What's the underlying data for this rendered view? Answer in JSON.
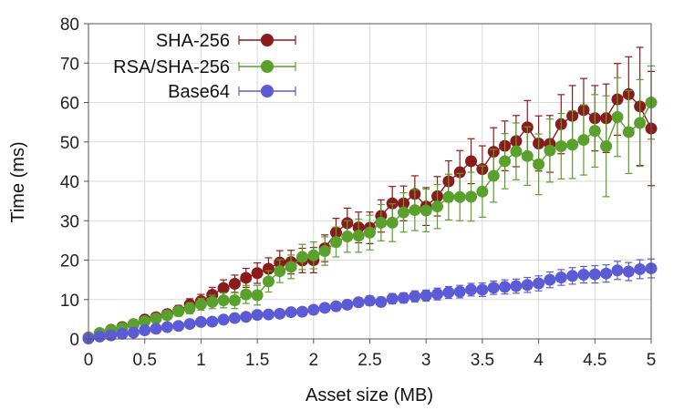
{
  "chart_data": {
    "type": "scatter",
    "xlabel": "Asset size (MB)",
    "ylabel": "Time (ms)",
    "xlim": [
      0,
      5
    ],
    "ylim": [
      0,
      80
    ],
    "xticks": [
      "0",
      "0.5",
      "1",
      "1.5",
      "2",
      "2.5",
      "3",
      "3.5",
      "4",
      "4.5",
      "5"
    ],
    "yticks": [
      "0",
      "10",
      "20",
      "30",
      "40",
      "50",
      "60",
      "70",
      "80"
    ],
    "grid": true,
    "legend_position": "top-left",
    "x": [
      0,
      0.1,
      0.2,
      0.3,
      0.4,
      0.5,
      0.6,
      0.7,
      0.8,
      0.9,
      1.0,
      1.1,
      1.2,
      1.3,
      1.4,
      1.5,
      1.6,
      1.7,
      1.8,
      1.9,
      2.0,
      2.1,
      2.2,
      2.3,
      2.4,
      2.5,
      2.6,
      2.7,
      2.8,
      2.9,
      3.0,
      3.1,
      3.2,
      3.3,
      3.4,
      3.5,
      3.6,
      3.7,
      3.8,
      3.9,
      4.0,
      4.1,
      4.2,
      4.3,
      4.4,
      4.5,
      4.6,
      4.7,
      4.8,
      4.9,
      5.0
    ],
    "series": [
      {
        "name": "SHA-256",
        "color": "#8b1a1a",
        "values": [
          0.3,
          1.4,
          2.3,
          3.0,
          3.7,
          4.9,
          5.5,
          6.3,
          7.2,
          8.7,
          9.6,
          11.2,
          12.9,
          14.0,
          15.5,
          16.7,
          17.8,
          19.4,
          19.5,
          19.9,
          20.0,
          23.0,
          27.0,
          29.4,
          28.3,
          28.2,
          31.2,
          34.4,
          34.4,
          36.8,
          33.6,
          36.2,
          40.0,
          42.3,
          45.1,
          43.1,
          47.5,
          49.0,
          50.2,
          53.7,
          49.6,
          49.5,
          54.5,
          56.6,
          58.1,
          56.0,
          56.0,
          60.8,
          62.1,
          59.0,
          53.4
        ],
        "err": [
          0.3,
          0.4,
          0.5,
          0.6,
          0.7,
          0.9,
          1.0,
          1.1,
          1.3,
          1.5,
          1.7,
          1.9,
          2.1,
          2.2,
          2.4,
          2.6,
          2.8,
          3.0,
          3.0,
          3.1,
          3.2,
          3.4,
          3.6,
          3.8,
          3.9,
          4.0,
          4.1,
          4.3,
          4.4,
          4.6,
          4.8,
          5.0,
          5.2,
          5.5,
          5.7,
          5.9,
          6.1,
          6.3,
          6.5,
          6.8,
          7.0,
          7.2,
          7.5,
          7.7,
          8.0,
          8.3,
          8.7,
          9.1,
          9.5,
          15.0,
          14.5
        ]
      },
      {
        "name": "RSA/SHA-256",
        "color": "#5aa02c",
        "values": [
          0.4,
          1.5,
          2.2,
          2.8,
          3.8,
          4.5,
          5.2,
          6.0,
          7.0,
          7.8,
          8.8,
          9.4,
          9.8,
          9.8,
          11.3,
          11.1,
          14.6,
          17.2,
          18.3,
          20.8,
          21.2,
          22.3,
          24.6,
          26.0,
          26.2,
          27.0,
          29.5,
          29.5,
          32.1,
          32.7,
          32.6,
          33.6,
          36.0,
          36.0,
          36.1,
          37.4,
          41.4,
          45.1,
          47.6,
          46.4,
          44.3,
          47.8,
          48.9,
          49.3,
          50.5,
          52.8,
          48.9,
          56.3,
          52.5,
          54.8,
          60.0
        ],
        "err": [
          0.3,
          0.4,
          0.5,
          0.6,
          0.7,
          0.8,
          1.0,
          1.1,
          1.2,
          1.4,
          1.5,
          1.7,
          1.9,
          2.1,
          2.3,
          2.5,
          2.7,
          2.9,
          3.0,
          3.2,
          3.4,
          3.6,
          3.8,
          4.0,
          4.2,
          4.4,
          4.6,
          4.8,
          5.0,
          5.2,
          5.4,
          5.6,
          5.8,
          6.0,
          6.2,
          6.5,
          6.7,
          7.0,
          7.2,
          7.4,
          7.7,
          8.0,
          8.3,
          8.6,
          8.9,
          9.2,
          12.8,
          10.0,
          10.5,
          11.0,
          9.3
        ]
      },
      {
        "name": "Base64",
        "color": "#5b5bd6",
        "values": [
          0.1,
          0.6,
          0.9,
          1.3,
          1.6,
          2.2,
          2.6,
          3.0,
          3.3,
          3.8,
          4.3,
          4.4,
          4.9,
          5.3,
          5.6,
          6.1,
          6.2,
          6.4,
          6.8,
          6.9,
          7.4,
          7.9,
          8.3,
          8.7,
          9.3,
          9.7,
          9.4,
          10.2,
          10.4,
          10.8,
          11.0,
          11.4,
          11.8,
          12.0,
          12.5,
          12.5,
          13.0,
          13.2,
          13.4,
          13.7,
          14.1,
          15.0,
          15.6,
          16.0,
          16.3,
          16.4,
          16.6,
          17.4,
          17.1,
          17.7,
          17.9
        ],
        "err": [
          0.1,
          0.2,
          0.2,
          0.3,
          0.3,
          0.4,
          0.4,
          0.4,
          0.5,
          0.5,
          0.6,
          0.6,
          0.6,
          0.7,
          0.7,
          0.7,
          0.8,
          0.8,
          0.9,
          0.9,
          0.9,
          1.0,
          1.0,
          1.1,
          1.1,
          1.2,
          1.2,
          1.3,
          1.3,
          1.4,
          1.4,
          1.5,
          1.5,
          1.6,
          1.6,
          1.7,
          1.7,
          1.8,
          1.8,
          1.9,
          1.9,
          2.0,
          2.0,
          2.1,
          2.1,
          2.2,
          2.2,
          2.3,
          2.3,
          2.4,
          2.4
        ]
      }
    ]
  }
}
